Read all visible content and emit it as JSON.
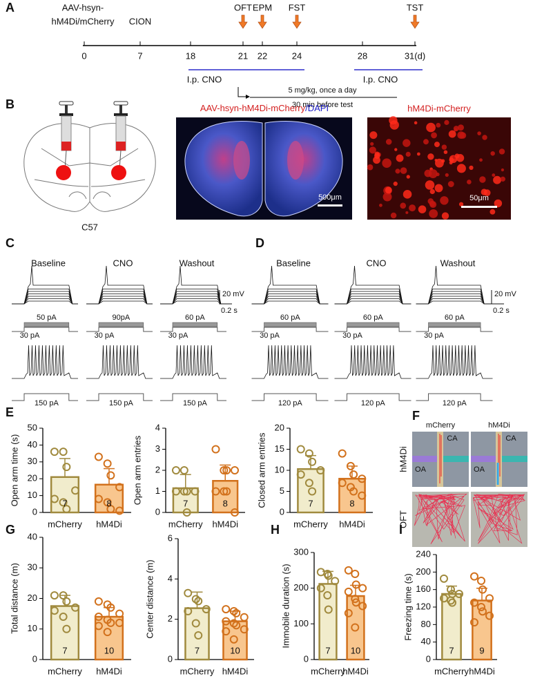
{
  "panel_labels": [
    "A",
    "B",
    "C",
    "D",
    "E",
    "F",
    "G",
    "H",
    "I"
  ],
  "timeline": {
    "injection": [
      "AAV-hsyn-",
      "hM4Di/mCherry"
    ],
    "cion": "CION",
    "tests": [
      "OFT",
      "EPM",
      "FST",
      "TST"
    ],
    "days": [
      "0",
      "7",
      "18",
      "21",
      "22",
      "24",
      "28",
      "31(d)"
    ],
    "cno_labels": [
      "I.p. CNO",
      "I.p. CNO"
    ],
    "dose": "5 mg/kg, once a day",
    "timing": "30 min before test"
  },
  "histology": {
    "strain": "C57",
    "overview_title_red": "AAV-hsyn-hM4Di-mCherry",
    "overview_title_blue": "/DAPI",
    "overview_scale": "500μm",
    "zoom_title": "hM4Di-mCherry",
    "zoom_scale": "50μm"
  },
  "electrophysiology": [
    {
      "conditions": [
        "Baseline",
        "CNO",
        "Washout"
      ],
      "steps": [
        "50 pA",
        "90pA",
        "60 pA"
      ],
      "base_steps": [
        "30 pA",
        "30 pA",
        "30 pA"
      ],
      "scale_v": "20 mV",
      "scale_t": "0.2 s",
      "train_steps": [
        "150 pA",
        "150 pA",
        "150 pA"
      ]
    },
    {
      "conditions": [
        "Baseline",
        "CNO",
        "Washout"
      ],
      "steps": [
        "60 pA",
        "60 pA",
        "60 pA"
      ],
      "base_steps": [
        "30 pA",
        "30 pA",
        "30 pA"
      ],
      "scale_v": "20 mV",
      "scale_t": "0.2 s",
      "train_steps": [
        "120 pA",
        "120 pA",
        "120 pA"
      ]
    }
  ],
  "maze": {
    "groups": [
      "mCherry",
      "hM4Di"
    ],
    "row_labels": [
      "hM4Di",
      "OFT"
    ],
    "arms": [
      "CA",
      "OA"
    ]
  },
  "chart_data": [
    {
      "type": "bar",
      "ylabel": "Open arm time (s)",
      "categories": [
        "mCherry",
        "hM4Di"
      ],
      "values": [
        21,
        16.5
      ],
      "errors": [
        11,
        9.5
      ],
      "points": [
        [
          36,
          36,
          27,
          13,
          8,
          6,
          2
        ],
        [
          33,
          29,
          22,
          15,
          8,
          6,
          2,
          1
        ]
      ],
      "n_labels": [
        "7",
        "8"
      ],
      "colors": [
        "#f1eccc",
        "#f8c68e"
      ],
      "edge_colors": [
        "#a08a3e",
        "#d2711c"
      ],
      "ylim": [
        0,
        50
      ],
      "yticks": [
        0,
        10,
        20,
        30,
        40,
        50
      ]
    },
    {
      "type": "bar",
      "ylabel": "Open arm entries",
      "categories": [
        "mCherry",
        "hM4Di"
      ],
      "values": [
        1.15,
        1.5
      ],
      "errors": [
        0.65,
        0.75
      ],
      "points": [
        [
          2,
          2,
          1,
          1,
          1,
          1,
          0
        ],
        [
          3,
          2,
          2,
          2,
          1,
          1,
          1,
          0
        ]
      ],
      "n_labels": [
        "7",
        "8"
      ],
      "colors": [
        "#f1eccc",
        "#f8c68e"
      ],
      "edge_colors": [
        "#a08a3e",
        "#d2711c"
      ],
      "ylim": [
        0,
        4
      ],
      "yticks": [
        0,
        1,
        2,
        3,
        4
      ]
    },
    {
      "type": "bar",
      "ylabel": "Closed arm entries",
      "categories": [
        "mCherry",
        "hM4Di"
      ],
      "values": [
        10.3,
        8
      ],
      "errors": [
        3.2,
        3
      ],
      "points": [
        [
          15,
          14,
          12,
          10,
          9,
          7,
          5
        ],
        [
          14,
          11,
          9,
          8,
          7,
          6,
          5,
          4
        ]
      ],
      "n_labels": [
        "7",
        "8"
      ],
      "colors": [
        "#f1eccc",
        "#f8c68e"
      ],
      "edge_colors": [
        "#a08a3e",
        "#d2711c"
      ],
      "ylim": [
        0,
        20
      ],
      "yticks": [
        0,
        5,
        10,
        15,
        20
      ]
    },
    {
      "type": "bar",
      "ylabel": "Total distance (m)",
      "categories": [
        "mCherry",
        "hM4Di"
      ],
      "values": [
        17.5,
        14
      ],
      "errors": [
        3.5,
        3
      ],
      "points": [
        [
          21,
          21,
          19,
          17,
          16,
          14,
          10
        ],
        [
          19,
          18,
          17,
          15,
          14,
          13,
          12,
          12,
          11,
          9
        ]
      ],
      "n_labels": [
        "7",
        "10"
      ],
      "colors": [
        "#f1eccc",
        "#f8c68e"
      ],
      "edge_colors": [
        "#a08a3e",
        "#d2711c"
      ],
      "ylim": [
        0,
        40
      ],
      "yticks": [
        0,
        10,
        20,
        30,
        40
      ]
    },
    {
      "type": "bar",
      "ylabel": "Center distance (m)",
      "categories": [
        "mCherry",
        "hM4Di"
      ],
      "values": [
        2.55,
        1.9
      ],
      "errors": [
        0.8,
        0.5
      ],
      "points": [
        [
          3.3,
          3,
          2.9,
          2.5,
          2.4,
          1.8,
          1.2
        ],
        [
          2.5,
          2.4,
          2.3,
          2.1,
          1.9,
          1.8,
          1.7,
          1.5,
          1.4,
          1
        ]
      ],
      "n_labels": [
        "7",
        "10"
      ],
      "colors": [
        "#f1eccc",
        "#f8c68e"
      ],
      "edge_colors": [
        "#a08a3e",
        "#d2711c"
      ],
      "ylim": [
        0,
        6
      ],
      "yticks": [
        0,
        2,
        4,
        6
      ]
    },
    {
      "type": "bar",
      "ylabel": "Immobile duration (s)",
      "categories": [
        "mCherry",
        "hM4Di"
      ],
      "values": [
        212,
        178
      ],
      "errors": [
        35,
        30
      ],
      "points": [
        [
          245,
          240,
          235,
          220,
          200,
          180,
          140
        ],
        [
          250,
          240,
          210,
          200,
          190,
          170,
          160,
          150,
          130,
          90
        ]
      ],
      "n_labels": [
        "7",
        "10"
      ],
      "colors": [
        "#f1eccc",
        "#f8c68e"
      ],
      "edge_colors": [
        "#a08a3e",
        "#d2711c"
      ],
      "ylim": [
        0,
        300
      ],
      "yticks": [
        0,
        100,
        200,
        300
      ]
    },
    {
      "type": "bar",
      "ylabel": "Freezing time (s)",
      "categories": [
        "mCherry",
        "hM4Di"
      ],
      "values": [
        150,
        135
      ],
      "errors": [
        18,
        28
      ],
      "points": [
        [
          185,
          160,
          150,
          150,
          140,
          135,
          130
        ],
        [
          190,
          180,
          160,
          140,
          130,
          120,
          110,
          100,
          85
        ]
      ],
      "n_labels": [
        "7",
        "9"
      ],
      "colors": [
        "#f1eccc",
        "#f8c68e"
      ],
      "edge_colors": [
        "#a08a3e",
        "#d2711c"
      ],
      "ylim": [
        0,
        240
      ],
      "yticks": [
        0,
        40,
        80,
        120,
        160,
        200,
        240
      ]
    }
  ]
}
